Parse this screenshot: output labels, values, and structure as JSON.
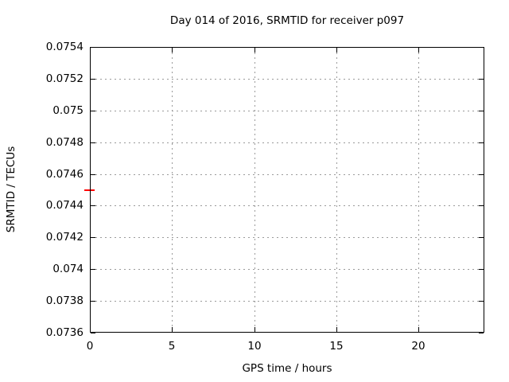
{
  "chart_data": {
    "type": "scatter",
    "title": "Day 014 of 2016, SRMTID for receiver p097",
    "xlabel": "GPS time / hours",
    "ylabel": "SRMTID / TECUs",
    "xlim": [
      0,
      24
    ],
    "ylim": [
      0.0736,
      0.0754
    ],
    "grid": true,
    "legend": "none",
    "x_ticks": {
      "values": [
        0,
        5,
        10,
        15,
        20
      ],
      "labels": [
        "0",
        "5",
        "10",
        "15",
        "20"
      ]
    },
    "y_ticks": {
      "values": [
        0.0754,
        0.0752,
        0.075,
        0.0748,
        0.0746,
        0.0744,
        0.0742,
        0.074,
        0.0738,
        0.0736
      ],
      "labels": [
        "0.0754",
        "0.0752",
        "0.075",
        "0.0748",
        "0.0746",
        "0.0744",
        "0.0742",
        "0.074",
        "0.0738",
        "0.0736"
      ]
    },
    "series": [
      {
        "name": "SRMTID",
        "color": "#ff0000",
        "marker": "horizontal-dash",
        "points": [
          {
            "x": 0,
            "y": 0.0745
          }
        ]
      }
    ]
  },
  "colors": {
    "background": "#ffffff",
    "border": "#000000",
    "grid": "#9a9a9a",
    "text": "#000000",
    "marker": "#ff0000"
  }
}
